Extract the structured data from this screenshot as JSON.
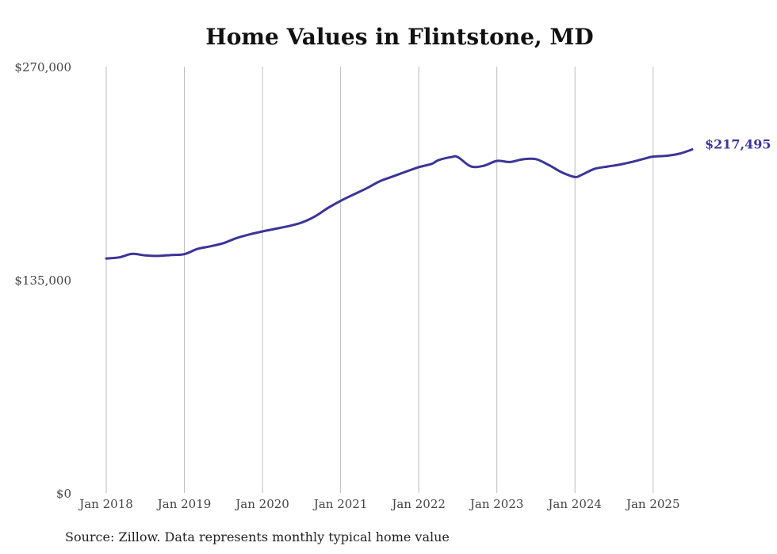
{
  "chart_data": {
    "type": "line",
    "title": "Home Values in Flintstone, MD",
    "xlabel": "",
    "ylabel": "",
    "ylim": [
      0,
      270000
    ],
    "yticks": [
      "$0",
      "$135,000",
      "$270,000"
    ],
    "ytick_values": [
      0,
      135000,
      270000
    ],
    "xticks": [
      "Jan 2018",
      "Jan 2019",
      "Jan 2020",
      "Jan 2021",
      "Jan 2022",
      "Jan 2023",
      "Jan 2024",
      "Jan 2025"
    ],
    "xtick_values": [
      2018,
      2019,
      2020,
      2021,
      2022,
      2023,
      2024,
      2025
    ],
    "xlim": [
      2018,
      2025.5
    ],
    "grid": "vertical",
    "line_color": "#3b3598",
    "end_label": "$217,495",
    "series": [
      {
        "x": [
          2018.0,
          2018.167,
          2018.333,
          2018.5,
          2018.667,
          2018.833,
          2019.0,
          2019.167,
          2019.333,
          2019.5,
          2019.667,
          2019.833,
          2020.0,
          2020.167,
          2020.333,
          2020.5,
          2020.667,
          2020.833,
          2021.0,
          2021.167,
          2021.333,
          2021.5,
          2021.667,
          2021.833,
          2022.0,
          2022.167,
          2022.25,
          2022.417,
          2022.5,
          2022.667,
          2022.833,
          2023.0,
          2023.167,
          2023.333,
          2023.5,
          2023.667,
          2023.833,
          2024.0,
          2024.083,
          2024.25,
          2024.417,
          2024.583,
          2024.75,
          2024.917,
          2025.0,
          2025.167,
          2025.333,
          2025.5
        ],
        "y": [
          148500,
          149200,
          151400,
          150400,
          150100,
          150700,
          151200,
          154500,
          156200,
          158200,
          161400,
          163700,
          165600,
          167300,
          169000,
          171200,
          175000,
          180300,
          185000,
          189000,
          192900,
          197400,
          200400,
          203400,
          206300,
          208400,
          210700,
          212700,
          212700,
          206800,
          207200,
          210300,
          209600,
          211300,
          211400,
          207600,
          203000,
          200100,
          201400,
          205200,
          206700,
          208000,
          209900,
          212100,
          213000,
          213500,
          214800,
          217495
        ]
      }
    ]
  },
  "source_note": "Source: Zillow. Data represents monthly typical home value"
}
